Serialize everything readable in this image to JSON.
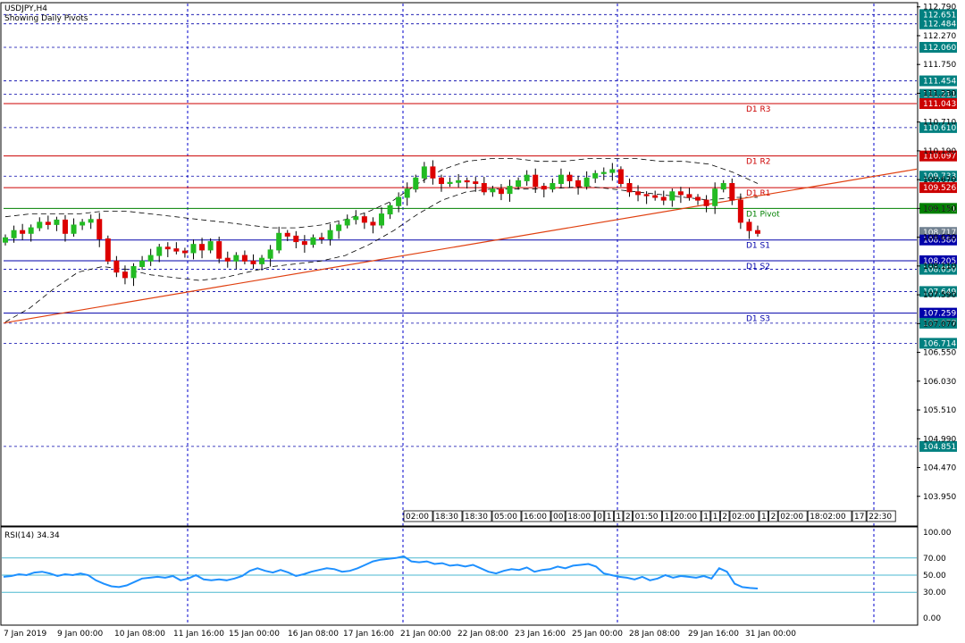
{
  "chart_data": {
    "type": "candlestick",
    "title": "USDJPY,H4",
    "subtitle": "Showing Daily Pivots",
    "x_tick_labels": [
      "7 Jan 2019",
      "9 Jan 00:00",
      "10 Jan 08:00",
      "11 Jan 16:00",
      "15 Jan 00:00",
      "16 Jan 08:00",
      "17 Jan 16:00",
      "21 Jan 00:00",
      "22 Jan 08:00",
      "23 Jan 16:00",
      "25 Jan 00:00",
      "28 Jan 08:00",
      "29 Jan 16:00",
      "31 Jan 00:00"
    ],
    "y_tick_labels": [
      "112.790",
      "112.270",
      "111.750",
      "111.230",
      "110.710",
      "110.190",
      "109.670",
      "109.150",
      "108.630",
      "108.110",
      "107.590",
      "107.070",
      "106.550",
      "106.030",
      "105.510",
      "104.990",
      "104.470",
      "103.950"
    ],
    "ylim": [
      103.43,
      112.85
    ],
    "pivots": [
      {
        "name": "D1 R3",
        "value": 111.043,
        "color": "#cc0000"
      },
      {
        "name": "D1 R2",
        "value": 110.097,
        "color": "#cc0000"
      },
      {
        "name": "D1 R1",
        "value": 109.526,
        "color": "#cc0000"
      },
      {
        "name": "D1 Pivot",
        "value": 109.151,
        "color": "#008000"
      },
      {
        "name": "D1 S1",
        "value": 108.58,
        "color": "#0000aa"
      },
      {
        "name": "D1 S2",
        "value": 108.205,
        "color": "#0000aa"
      },
      {
        "name": "D1 S3",
        "value": 107.259,
        "color": "#0000aa"
      }
    ],
    "price_tags": [
      {
        "value": "112.651",
        "bg": "#008080"
      },
      {
        "value": "112.484",
        "bg": "#008080"
      },
      {
        "value": "112.060",
        "bg": "#008080"
      },
      {
        "value": "111.454",
        "bg": "#008080"
      },
      {
        "value": "111.211",
        "bg": "#008080"
      },
      {
        "value": "111.043",
        "bg": "#cc0000"
      },
      {
        "value": "110.610",
        "bg": "#008080"
      },
      {
        "value": "110.097",
        "bg": "#cc0000"
      },
      {
        "value": "109.733",
        "bg": "#008080"
      },
      {
        "value": "109.526",
        "bg": "#cc0000"
      },
      {
        "value": "109.151",
        "bg": "#008000"
      },
      {
        "value": "108.717",
        "bg": "#708090"
      },
      {
        "value": "108.580",
        "bg": "#0000aa"
      },
      {
        "value": "108.205",
        "bg": "#0000aa"
      },
      {
        "value": "108.050",
        "bg": "#008080"
      },
      {
        "value": "107.649",
        "bg": "#008080"
      },
      {
        "value": "107.259",
        "bg": "#0000aa"
      },
      {
        "value": "107.077",
        "bg": "#008080"
      },
      {
        "value": "106.714",
        "bg": "#008080"
      },
      {
        "value": "104.851",
        "bg": "#008080"
      }
    ],
    "trendline": {
      "from": 107.08,
      "to": 109.86,
      "color": "#e04010"
    },
    "bottom_tags": [
      "02:00",
      "18:30",
      "18:30",
      "05:00",
      "16:00",
      "00",
      "18:00",
      "0",
      "1",
      "1",
      "2",
      "01:50",
      "1",
      "20:00",
      "1",
      "1",
      "2",
      "02:00",
      "1",
      "2",
      "02:00",
      "18:02:00",
      "17",
      "22:30"
    ],
    "closes": [
      108.62,
      108.75,
      108.7,
      108.8,
      108.9,
      108.86,
      108.94,
      108.7,
      108.85,
      108.9,
      108.95,
      108.6,
      108.2,
      108.0,
      107.9,
      108.1,
      108.2,
      108.3,
      108.45,
      108.42,
      108.38,
      108.35,
      108.5,
      108.4,
      108.55,
      108.25,
      108.2,
      108.3,
      108.2,
      108.15,
      108.25,
      108.4,
      108.7,
      108.65,
      108.55,
      108.5,
      108.62,
      108.6,
      108.75,
      108.85,
      108.95,
      109.0,
      108.9,
      108.85,
      109.05,
      109.2,
      109.35,
      109.5,
      109.7,
      109.9,
      109.7,
      109.6,
      109.62,
      109.65,
      109.63,
      109.6,
      109.45,
      109.5,
      109.42,
      109.55,
      109.65,
      109.75,
      109.55,
      109.5,
      109.6,
      109.75,
      109.65,
      109.55,
      109.7,
      109.78,
      109.8,
      109.85,
      109.6,
      109.45,
      109.4,
      109.38,
      109.35,
      109.3,
      109.45,
      109.4,
      109.35,
      109.3,
      109.2,
      109.5,
      109.6,
      109.3,
      108.9,
      108.75,
      108.7
    ],
    "bb_upper": [
      109.0,
      109.05,
      109.05,
      109.05,
      109.1,
      109.1,
      109.05,
      109.0,
      108.95,
      108.9,
      108.85,
      108.8,
      108.8,
      108.85,
      108.95,
      109.1,
      109.3,
      109.6,
      109.85,
      110.0,
      110.05,
      110.05,
      110.0,
      110.0,
      110.05,
      110.05,
      110.05,
      110.0,
      110.0,
      109.95,
      109.8,
      109.6
    ],
    "bb_lower": [
      107.1,
      107.35,
      107.7,
      108.0,
      108.1,
      108.05,
      107.95,
      107.9,
      107.85,
      107.9,
      108.0,
      108.1,
      108.15,
      108.2,
      108.3,
      108.5,
      108.75,
      109.05,
      109.3,
      109.45,
      109.5,
      109.5,
      109.5,
      109.52,
      109.55,
      109.5,
      109.45,
      109.4,
      109.35,
      109.3,
      109.35,
      109.35
    ],
    "rsi": {
      "label": "RSI(14) 34.34",
      "levels": [
        70,
        50,
        30
      ],
      "y_tick_labels": [
        "100.00",
        "70.00",
        "50.00",
        "30.00",
        "0.00"
      ],
      "values": [
        48,
        49,
        51,
        50,
        53,
        54,
        52,
        49,
        51,
        50,
        52,
        50,
        44,
        40,
        37,
        36,
        38,
        42,
        46,
        47,
        48,
        47,
        49,
        44,
        46,
        50,
        45,
        44,
        45,
        44,
        46,
        49,
        55,
        58,
        55,
        53,
        56,
        53,
        49,
        51,
        54,
        56,
        58,
        57,
        54,
        55,
        58,
        62,
        66,
        68,
        69,
        70,
        72,
        66,
        65,
        66,
        63,
        64,
        61,
        62,
        60,
        62,
        58,
        54,
        52,
        55,
        57,
        56,
        59,
        54,
        56,
        57,
        60,
        58,
        61,
        62,
        63,
        60,
        52,
        50,
        48,
        47,
        45,
        48,
        44,
        46,
        50,
        47,
        49,
        48,
        47,
        49,
        46,
        58,
        54,
        40,
        36,
        35,
        34.34
      ]
    }
  }
}
